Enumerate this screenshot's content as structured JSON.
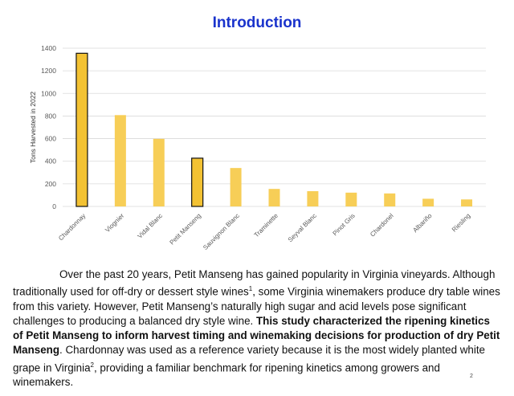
{
  "slide": {
    "title": "Introduction",
    "page_number": "2"
  },
  "paragraph": {
    "segments": [
      {
        "text": "Over the past 20 years, Petit Manseng has gained popularity in Virginia vineyards. Although traditionally used for off-dry or dessert style wines",
        "bold": false
      },
      {
        "text": "1",
        "sup": true
      },
      {
        "text": ", some Virginia winemakers produce dry table wines from this variety. However, Petit Manseng’s naturally high sugar and acid levels pose significant challenges to producing a balanced dry style wine. ",
        "bold": false
      },
      {
        "text": "This study characterized the ripening kinetics of Petit Manseng to inform harvest timing and winemaking decisions for production of dry Petit Manseng",
        "bold": true
      },
      {
        "text": ". Chardonnay was used as a reference variety because it is the most widely planted white grape in Virginia",
        "bold": false
      },
      {
        "text": "2",
        "sup": true
      },
      {
        "text": ", providing a familiar benchmark for ripening kinetics among growers and winemakers.",
        "bold": false
      }
    ]
  },
  "colors": {
    "bar": "#f7ce57",
    "bar_highlight": "#f3c233",
    "highlight_outline": "#111111",
    "grid": "#d9d9d9",
    "axis_text": "#595959"
  },
  "chart_data": {
    "type": "bar",
    "title": "",
    "xlabel": "",
    "ylabel": "Tons Harvested in 2022",
    "categories": [
      "Chardonnay",
      "Viognier",
      "Vidal Blanc",
      "Petit Manseng",
      "Sauvignon Blanc",
      "Traminette",
      "Seyval Blanc",
      "Pinot Gris",
      "Chardonel",
      "Albariño",
      "Riesling"
    ],
    "values": [
      1355,
      808,
      598,
      427,
      340,
      155,
      135,
      122,
      115,
      68,
      62
    ],
    "highlighted": [
      "Chardonnay",
      "Petit Manseng"
    ],
    "ylim": [
      0,
      1400
    ],
    "yticks": [
      0,
      200,
      400,
      600,
      800,
      1000,
      1200,
      1400
    ],
    "grid": true,
    "legend": "none"
  }
}
